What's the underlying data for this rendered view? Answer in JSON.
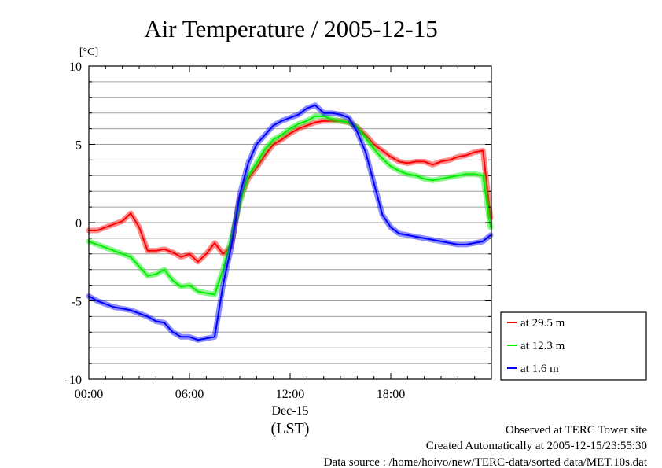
{
  "chart_data": {
    "type": "line",
    "title": "Air Temperature / 2005-12-15",
    "ylabel": "[°C]",
    "xlabel": "(LST)",
    "date_label": "Dec-15",
    "ylim": [
      -10,
      10
    ],
    "xlim": [
      0,
      24
    ],
    "y_ticks": [
      "10",
      "5",
      "0",
      "-5",
      "-10"
    ],
    "x_ticks": [
      "00:00",
      "06:00",
      "12:00",
      "18:00"
    ],
    "grid": "horizontal every 1 °C",
    "legend_position": "right-bottom",
    "x_hours": [
      0,
      0.5,
      1,
      1.5,
      2,
      2.5,
      3,
      3.5,
      4,
      4.5,
      5,
      5.5,
      6,
      6.5,
      7,
      7.5,
      8,
      8.5,
      9,
      9.5,
      10,
      10.5,
      11,
      11.5,
      12,
      12.5,
      13,
      13.5,
      14,
      14.5,
      15,
      15.5,
      16,
      16.5,
      17,
      17.5,
      18,
      18.5,
      19,
      19.5,
      20,
      20.5,
      21,
      21.5,
      22,
      22.5,
      23,
      23.5,
      23.95
    ],
    "series": [
      {
        "name": "at 29.5 m",
        "color": "#ff0000",
        "values": [
          -0.5,
          -0.5,
          -0.3,
          -0.1,
          0.1,
          0.6,
          -0.3,
          -1.8,
          -1.8,
          -1.7,
          -1.9,
          -2.2,
          -2.0,
          -2.5,
          -2.0,
          -1.3,
          -2.0,
          -1.5,
          1.5,
          2.8,
          3.5,
          4.3,
          5.0,
          5.3,
          5.7,
          6.0,
          6.2,
          6.4,
          6.5,
          6.5,
          6.5,
          6.4,
          6.1,
          5.6,
          5.0,
          4.6,
          4.2,
          3.9,
          3.8,
          3.9,
          3.9,
          3.7,
          3.9,
          4.0,
          4.2,
          4.3,
          4.5,
          4.6,
          0.3
        ]
      },
      {
        "name": "at 12.3 m",
        "color": "#00ee00",
        "values": [
          -1.2,
          -1.4,
          -1.6,
          -1.8,
          -2.0,
          -2.2,
          -2.8,
          -3.4,
          -3.3,
          -3.0,
          -3.7,
          -4.1,
          -4.0,
          -4.4,
          -4.5,
          -4.6,
          -3.0,
          -1.0,
          1.3,
          3.0,
          3.8,
          4.7,
          5.3,
          5.6,
          6.0,
          6.3,
          6.5,
          6.8,
          6.8,
          6.6,
          6.5,
          6.4,
          6.1,
          5.4,
          4.7,
          4.1,
          3.6,
          3.3,
          3.1,
          3.0,
          2.8,
          2.7,
          2.8,
          2.9,
          3.0,
          3.1,
          3.1,
          3.0,
          -0.3
        ]
      },
      {
        "name": "at 1.6 m",
        "color": "#0000ff",
        "values": [
          -4.7,
          -5.0,
          -5.2,
          -5.4,
          -5.5,
          -5.6,
          -5.8,
          -6.0,
          -6.3,
          -6.4,
          -7.0,
          -7.3,
          -7.3,
          -7.5,
          -7.4,
          -7.3,
          -4.0,
          -1.5,
          1.8,
          3.8,
          5.0,
          5.6,
          6.2,
          6.5,
          6.7,
          6.9,
          7.3,
          7.5,
          7.0,
          7.0,
          6.9,
          6.7,
          5.8,
          4.5,
          2.5,
          0.5,
          -0.3,
          -0.7,
          -0.8,
          -0.9,
          -1.0,
          -1.1,
          -1.2,
          -1.3,
          -1.4,
          -1.4,
          -1.3,
          -1.2,
          -0.8
        ]
      }
    ]
  },
  "footer": {
    "line1": "Observed at TERC Tower site",
    "line2": "Created Automatically at 2005-12-15/23:55:30",
    "line3": "Data source : /home/hoivo/new/TERC-data/sorted  data/MET.10s.dat"
  }
}
